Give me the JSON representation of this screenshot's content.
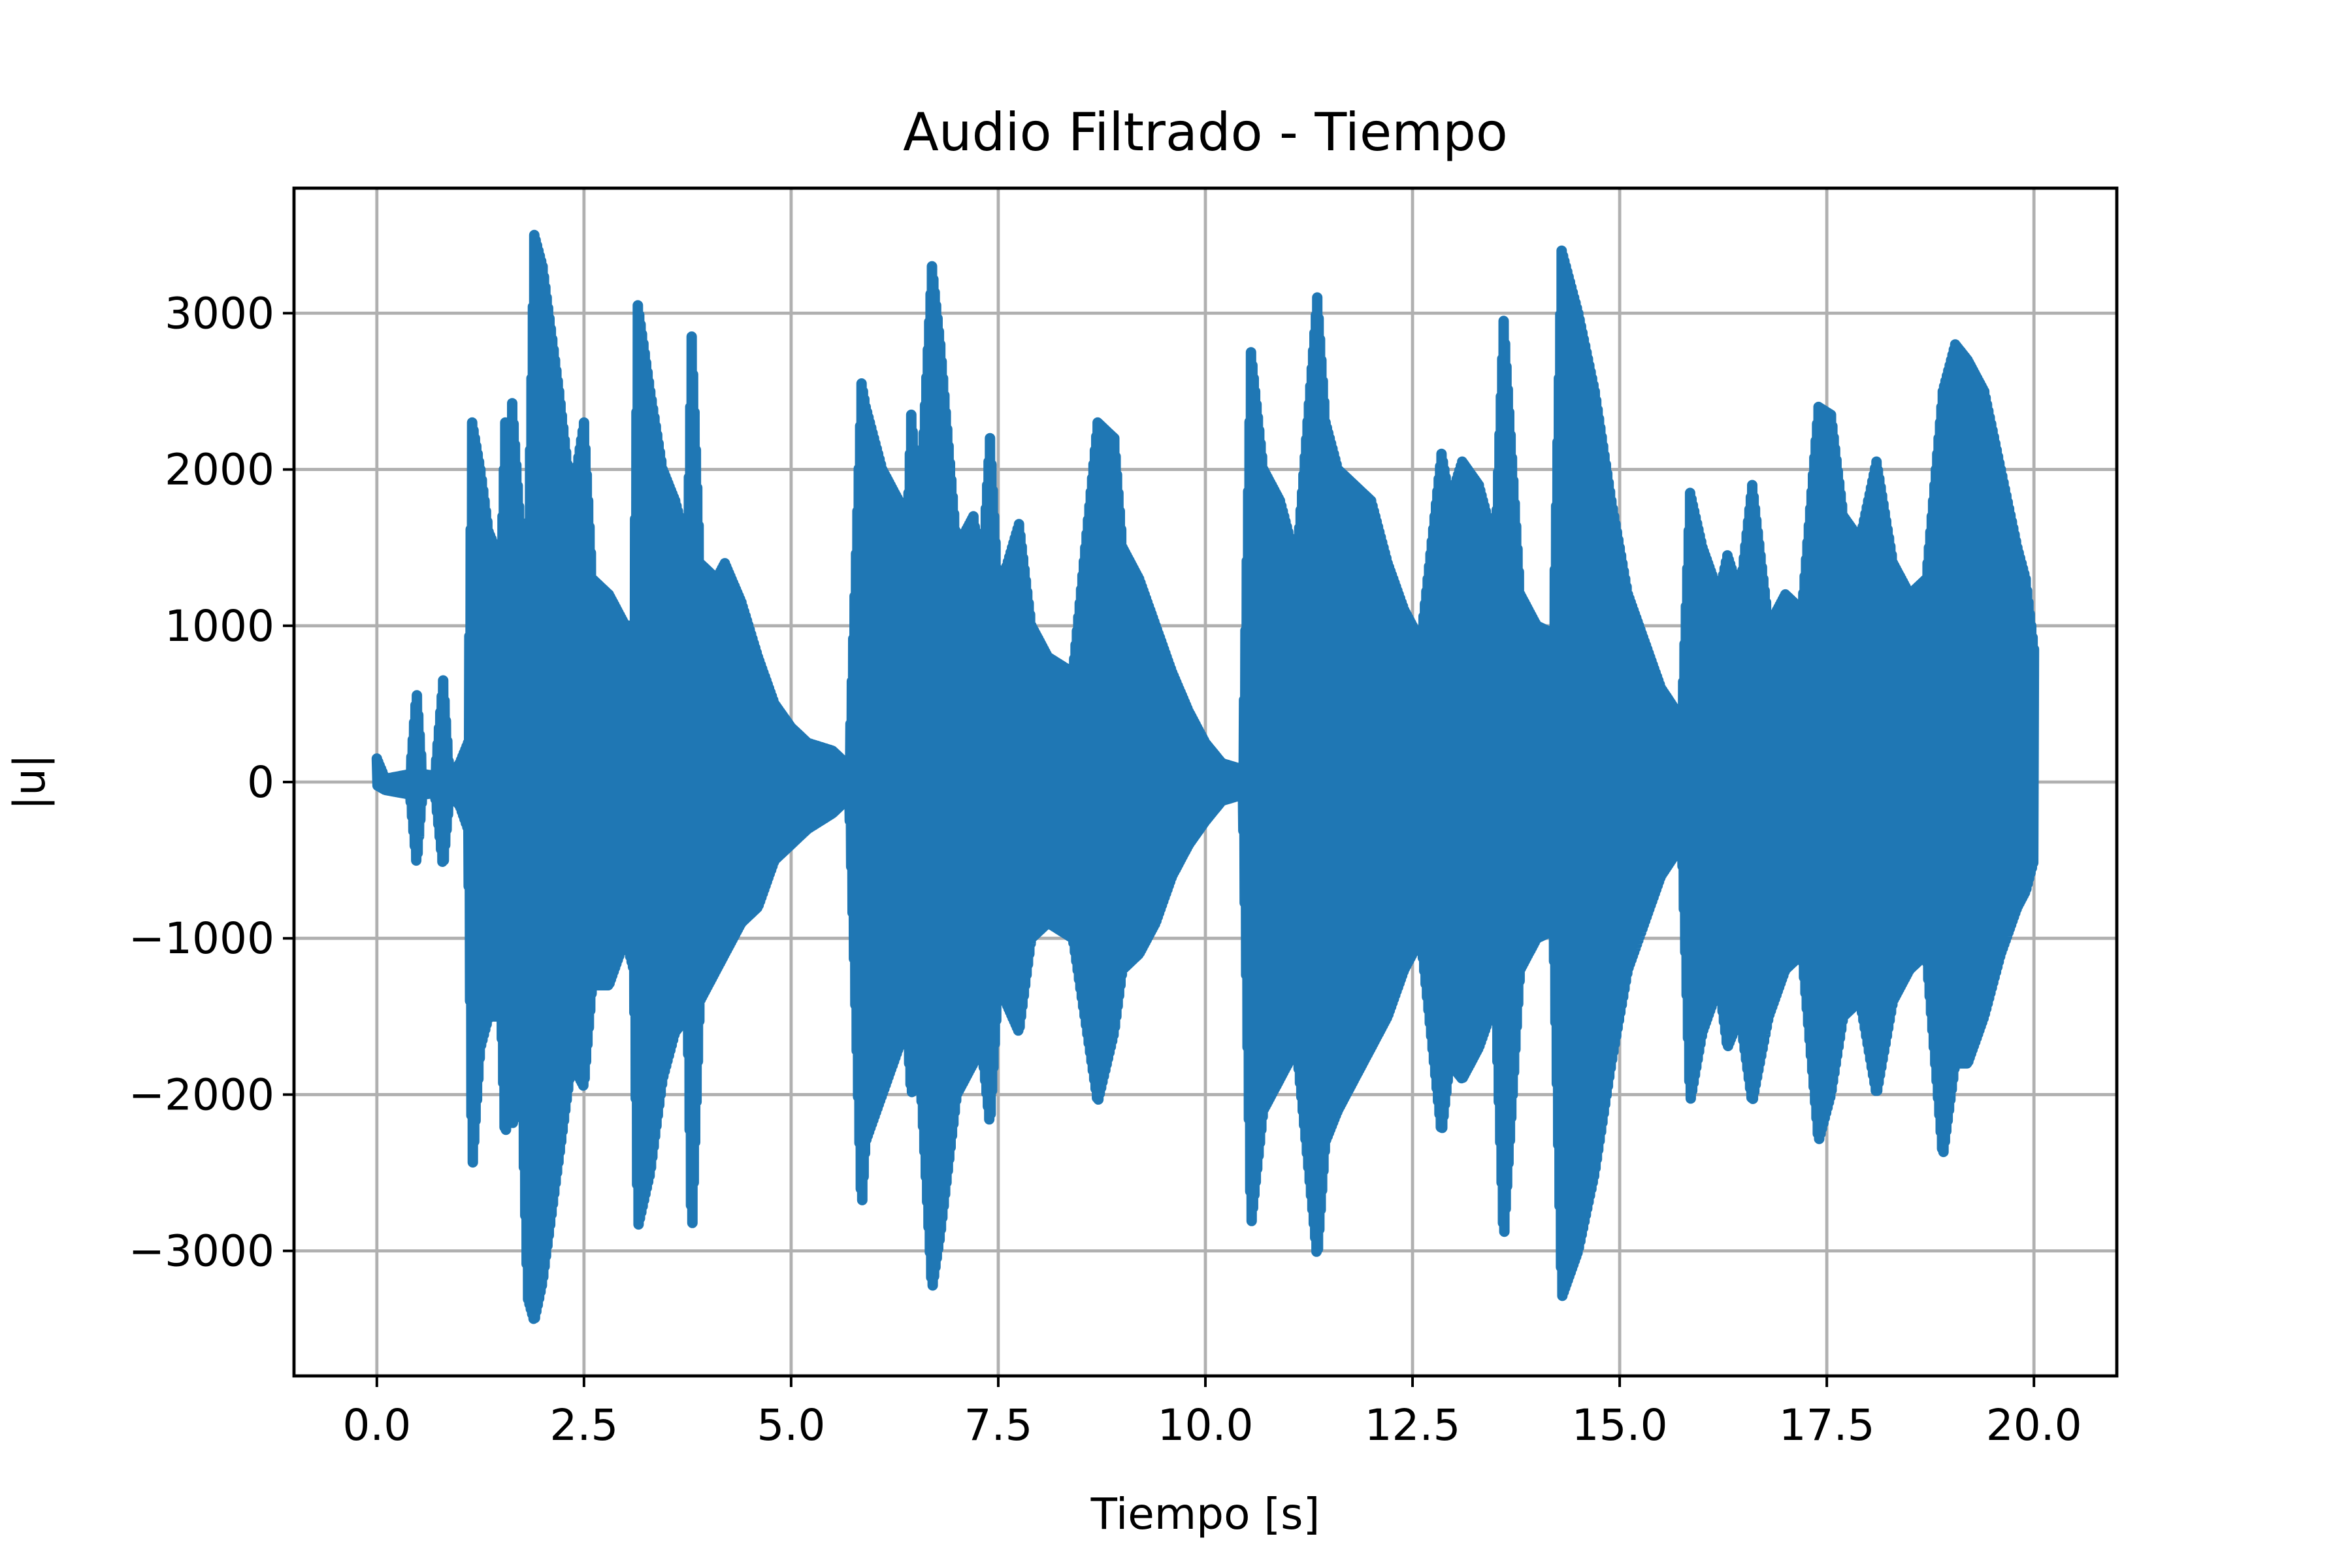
{
  "chart_data": {
    "type": "line",
    "title": "Audio Filtrado - Tiempo",
    "xlabel": "Tiempo [s]",
    "ylabel": "|u|",
    "xlim": [
      -1.0,
      21.0
    ],
    "ylim": [
      -3800,
      3800
    ],
    "xticks": [
      0.0,
      2.5,
      5.0,
      7.5,
      10.0,
      12.5,
      15.0,
      17.5,
      20.0
    ],
    "xtick_labels": [
      "0.0",
      "2.5",
      "5.0",
      "7.5",
      "10.0",
      "12.5",
      "15.0",
      "17.5",
      "20.0"
    ],
    "yticks": [
      -3000,
      -2000,
      -1000,
      0,
      1000,
      2000,
      3000
    ],
    "ytick_labels": [
      "−3000",
      "−2000",
      "−1000",
      "0",
      "1000",
      "2000",
      "3000"
    ],
    "grid": true,
    "color": "#1f77b4",
    "series": [
      {
        "name": "",
        "description": "dense oscillating audio waveform; values below are the upper/lower envelope (data units)",
        "upper_envelope": [
          [
            0.0,
            150
          ],
          [
            0.1,
            20
          ],
          [
            0.4,
            50
          ],
          [
            0.48,
            580
          ],
          [
            0.55,
            50
          ],
          [
            0.7,
            40
          ],
          [
            0.8,
            650
          ],
          [
            0.88,
            30
          ],
          [
            1.0,
            120
          ],
          [
            1.1,
            250
          ],
          [
            1.15,
            2300
          ],
          [
            1.25,
            2000
          ],
          [
            1.35,
            1600
          ],
          [
            1.5,
            1400
          ],
          [
            1.55,
            2300
          ],
          [
            1.6,
            1400
          ],
          [
            1.63,
            2450
          ],
          [
            1.75,
            1500
          ],
          [
            1.82,
            1300
          ],
          [
            1.9,
            3500
          ],
          [
            2.0,
            3300
          ],
          [
            2.2,
            2500
          ],
          [
            2.35,
            1800
          ],
          [
            2.5,
            2300
          ],
          [
            2.6,
            1300
          ],
          [
            2.8,
            1200
          ],
          [
            3.0,
            1000
          ],
          [
            3.1,
            1000
          ],
          [
            3.15,
            3050
          ],
          [
            3.3,
            2500
          ],
          [
            3.45,
            2000
          ],
          [
            3.6,
            1800
          ],
          [
            3.75,
            1500
          ],
          [
            3.8,
            2850
          ],
          [
            3.9,
            1400
          ],
          [
            4.1,
            1300
          ],
          [
            4.2,
            1400
          ],
          [
            4.4,
            1150
          ],
          [
            4.6,
            800
          ],
          [
            4.8,
            500
          ],
          [
            5.0,
            350
          ],
          [
            5.2,
            250
          ],
          [
            5.5,
            200
          ],
          [
            5.7,
            100
          ],
          [
            5.85,
            2550
          ],
          [
            5.9,
            2400
          ],
          [
            6.1,
            2000
          ],
          [
            6.3,
            1800
          ],
          [
            6.4,
            1600
          ],
          [
            6.45,
            2350
          ],
          [
            6.55,
            1700
          ],
          [
            6.7,
            3300
          ],
          [
            6.8,
            2800
          ],
          [
            7.0,
            1500
          ],
          [
            7.2,
            1700
          ],
          [
            7.3,
            1300
          ],
          [
            7.4,
            2200
          ],
          [
            7.5,
            1200
          ],
          [
            7.75,
            1650
          ],
          [
            7.9,
            1000
          ],
          [
            8.1,
            800
          ],
          [
            8.4,
            700
          ],
          [
            8.7,
            2300
          ],
          [
            8.9,
            2200
          ],
          [
            9.0,
            1500
          ],
          [
            9.2,
            1300
          ],
          [
            9.4,
            1000
          ],
          [
            9.6,
            700
          ],
          [
            9.8,
            450
          ],
          [
            10.0,
            250
          ],
          [
            10.2,
            120
          ],
          [
            10.45,
            80
          ],
          [
            10.55,
            2750
          ],
          [
            10.7,
            2000
          ],
          [
            10.9,
            1800
          ],
          [
            11.1,
            1400
          ],
          [
            11.35,
            3100
          ],
          [
            11.45,
            2300
          ],
          [
            11.6,
            2000
          ],
          [
            11.8,
            1900
          ],
          [
            12.0,
            1800
          ],
          [
            12.2,
            1400
          ],
          [
            12.4,
            1100
          ],
          [
            12.6,
            900
          ],
          [
            12.85,
            2100
          ],
          [
            12.95,
            1800
          ],
          [
            13.1,
            2050
          ],
          [
            13.3,
            1900
          ],
          [
            13.5,
            1500
          ],
          [
            13.6,
            2950
          ],
          [
            13.8,
            1200
          ],
          [
            14.0,
            1000
          ],
          [
            14.2,
            950
          ],
          [
            14.3,
            3400
          ],
          [
            14.5,
            3000
          ],
          [
            14.7,
            2500
          ],
          [
            14.9,
            1800
          ],
          [
            15.1,
            1200
          ],
          [
            15.3,
            900
          ],
          [
            15.5,
            600
          ],
          [
            15.75,
            400
          ],
          [
            15.85,
            1850
          ],
          [
            16.0,
            1500
          ],
          [
            16.2,
            1200
          ],
          [
            16.3,
            1450
          ],
          [
            16.45,
            1200
          ],
          [
            16.6,
            1900
          ],
          [
            16.8,
            1000
          ],
          [
            17.0,
            1200
          ],
          [
            17.2,
            1100
          ],
          [
            17.4,
            2400
          ],
          [
            17.55,
            2350
          ],
          [
            17.7,
            1700
          ],
          [
            17.9,
            1550
          ],
          [
            18.1,
            2050
          ],
          [
            18.3,
            1400
          ],
          [
            18.5,
            1200
          ],
          [
            18.7,
            1300
          ],
          [
            18.9,
            2500
          ],
          [
            19.05,
            2800
          ],
          [
            19.2,
            2700
          ],
          [
            19.4,
            2500
          ],
          [
            19.6,
            2000
          ],
          [
            19.8,
            1500
          ],
          [
            19.9,
            1300
          ],
          [
            20.0,
            850
          ]
        ],
        "lower_envelope": [
          [
            0.0,
            -20
          ],
          [
            0.1,
            -50
          ],
          [
            0.4,
            -80
          ],
          [
            0.48,
            -530
          ],
          [
            0.55,
            -80
          ],
          [
            0.7,
            -70
          ],
          [
            0.8,
            -550
          ],
          [
            0.88,
            -80
          ],
          [
            1.0,
            -150
          ],
          [
            1.1,
            -300
          ],
          [
            1.15,
            -2500
          ],
          [
            1.25,
            -1700
          ],
          [
            1.35,
            -1500
          ],
          [
            1.5,
            -1500
          ],
          [
            1.55,
            -2350
          ],
          [
            1.6,
            -1600
          ],
          [
            1.63,
            -2200
          ],
          [
            1.75,
            -2000
          ],
          [
            1.82,
            -3300
          ],
          [
            1.9,
            -3450
          ],
          [
            2.0,
            -3200
          ],
          [
            2.2,
            -2400
          ],
          [
            2.35,
            -1800
          ],
          [
            2.5,
            -1950
          ],
          [
            2.6,
            -1300
          ],
          [
            2.8,
            -1300
          ],
          [
            3.0,
            -1000
          ],
          [
            3.1,
            -1200
          ],
          [
            3.15,
            -2850
          ],
          [
            3.3,
            -2500
          ],
          [
            3.45,
            -1900
          ],
          [
            3.6,
            -1600
          ],
          [
            3.75,
            -1500
          ],
          [
            3.8,
            -2950
          ],
          [
            3.9,
            -1400
          ],
          [
            4.1,
            -1200
          ],
          [
            4.2,
            -1100
          ],
          [
            4.4,
            -900
          ],
          [
            4.6,
            -800
          ],
          [
            4.8,
            -500
          ],
          [
            5.0,
            -400
          ],
          [
            5.2,
            -300
          ],
          [
            5.5,
            -200
          ],
          [
            5.7,
            -100
          ],
          [
            5.85,
            -2750
          ],
          [
            5.9,
            -2300
          ],
          [
            6.1,
            -2000
          ],
          [
            6.3,
            -1700
          ],
          [
            6.4,
            -1600
          ],
          [
            6.45,
            -2000
          ],
          [
            6.55,
            -1800
          ],
          [
            6.7,
            -3250
          ],
          [
            6.8,
            -2900
          ],
          [
            7.0,
            -2000
          ],
          [
            7.2,
            -1800
          ],
          [
            7.3,
            -1700
          ],
          [
            7.4,
            -2200
          ],
          [
            7.5,
            -1300
          ],
          [
            7.75,
            -1600
          ],
          [
            7.9,
            -1000
          ],
          [
            8.1,
            -900
          ],
          [
            8.4,
            -1000
          ],
          [
            8.7,
            -2050
          ],
          [
            8.9,
            -1600
          ],
          [
            9.0,
            -1200
          ],
          [
            9.2,
            -1100
          ],
          [
            9.4,
            -900
          ],
          [
            9.6,
            -600
          ],
          [
            9.8,
            -400
          ],
          [
            10.0,
            -250
          ],
          [
            10.2,
            -120
          ],
          [
            10.45,
            -80
          ],
          [
            10.55,
            -2850
          ],
          [
            10.7,
            -2100
          ],
          [
            10.9,
            -1900
          ],
          [
            11.1,
            -1700
          ],
          [
            11.35,
            -3050
          ],
          [
            11.45,
            -2300
          ],
          [
            11.6,
            -2100
          ],
          [
            11.8,
            -1900
          ],
          [
            12.0,
            -1700
          ],
          [
            12.2,
            -1500
          ],
          [
            12.4,
            -1200
          ],
          [
            12.6,
            -1000
          ],
          [
            12.85,
            -2250
          ],
          [
            12.95,
            -1800
          ],
          [
            13.1,
            -1900
          ],
          [
            13.3,
            -1700
          ],
          [
            13.5,
            -1400
          ],
          [
            13.6,
            -2950
          ],
          [
            13.8,
            -1200
          ],
          [
            14.0,
            -1000
          ],
          [
            14.2,
            -950
          ],
          [
            14.3,
            -3300
          ],
          [
            14.5,
            -3000
          ],
          [
            14.7,
            -2500
          ],
          [
            14.9,
            -1800
          ],
          [
            15.1,
            -1200
          ],
          [
            15.3,
            -900
          ],
          [
            15.5,
            -600
          ],
          [
            15.75,
            -400
          ],
          [
            15.85,
            -2050
          ],
          [
            16.0,
            -1600
          ],
          [
            16.2,
            -1300
          ],
          [
            16.3,
            -1700
          ],
          [
            16.45,
            -1500
          ],
          [
            16.6,
            -2050
          ],
          [
            16.8,
            -1500
          ],
          [
            17.0,
            -1200
          ],
          [
            17.2,
            -1100
          ],
          [
            17.4,
            -2300
          ],
          [
            17.55,
            -2000
          ],
          [
            17.7,
            -1500
          ],
          [
            17.9,
            -1400
          ],
          [
            18.1,
            -2000
          ],
          [
            18.3,
            -1400
          ],
          [
            18.5,
            -1200
          ],
          [
            18.7,
            -1100
          ],
          [
            18.9,
            -2400
          ],
          [
            19.05,
            -1800
          ],
          [
            19.2,
            -1800
          ],
          [
            19.4,
            -1500
          ],
          [
            19.6,
            -1100
          ],
          [
            19.8,
            -800
          ],
          [
            19.9,
            -700
          ],
          [
            20.0,
            -500
          ]
        ]
      }
    ]
  }
}
